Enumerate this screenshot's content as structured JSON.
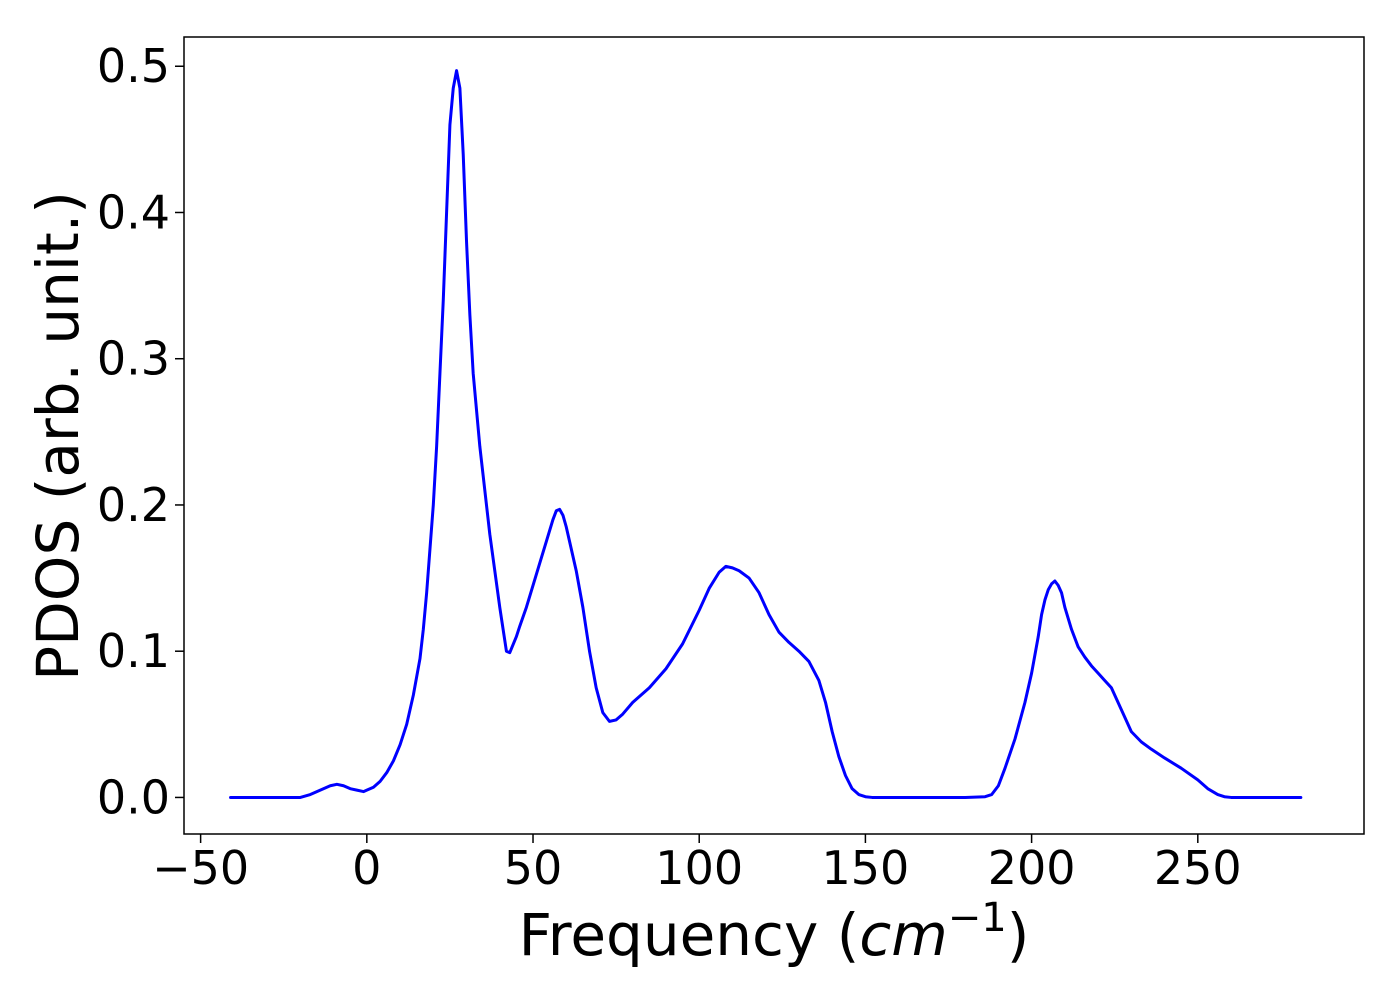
{
  "chart_data": {
    "type": "line",
    "title": "",
    "xlabel": "Frequency",
    "xlabel_unit_base": "cm",
    "xlabel_unit_exp": "−1",
    "ylabel": "PDOS (arb. unit.)",
    "xlim": [
      -55,
      300
    ],
    "ylim": [
      -0.025,
      0.52
    ],
    "xticks": [
      -50,
      0,
      50,
      100,
      150,
      200,
      250
    ],
    "xtick_labels": [
      "−50",
      "0",
      "50",
      "100",
      "150",
      "200",
      "250"
    ],
    "yticks": [
      0.0,
      0.1,
      0.2,
      0.3,
      0.4,
      0.5
    ],
    "ytick_labels": [
      "0.0",
      "0.1",
      "0.2",
      "0.3",
      "0.4",
      "0.5"
    ],
    "grid": false,
    "legend": "none",
    "line_color": "#0000ff",
    "series": [
      {
        "x": [
          -41,
          -30,
          -20,
          -17,
          -14,
          -11,
          -9,
          -7,
          -5,
          -3,
          -1,
          0,
          2,
          4,
          6,
          8,
          10,
          12,
          14,
          16,
          17,
          18,
          19,
          20,
          21,
          22,
          23,
          24,
          25,
          26,
          27,
          28,
          29,
          30,
          31,
          32,
          34,
          37,
          40,
          42,
          43,
          45,
          46,
          48,
          50,
          52,
          54,
          56,
          57,
          58,
          59,
          60,
          61,
          63,
          65,
          67,
          69,
          71,
          73,
          75,
          77,
          80,
          85,
          90,
          95,
          100,
          103,
          106,
          108,
          110,
          112,
          115,
          118,
          121,
          124,
          127,
          130,
          133,
          136,
          138,
          140,
          142,
          144,
          146,
          148,
          150,
          152,
          155,
          160,
          170,
          180,
          186,
          188,
          190,
          192,
          195,
          198,
          200,
          202,
          203,
          204,
          205,
          206,
          207,
          208,
          209,
          210,
          212,
          214,
          216,
          218,
          220,
          222,
          224,
          226,
          228,
          230,
          233,
          236,
          240,
          245,
          250,
          253,
          256,
          258,
          260,
          265,
          270,
          281
        ],
        "y": [
          0.0,
          0.0,
          0.0,
          0.002,
          0.005,
          0.008,
          0.009,
          0.008,
          0.006,
          0.005,
          0.004,
          0.005,
          0.007,
          0.011,
          0.017,
          0.025,
          0.036,
          0.05,
          0.07,
          0.095,
          0.115,
          0.14,
          0.17,
          0.2,
          0.24,
          0.29,
          0.34,
          0.4,
          0.46,
          0.485,
          0.497,
          0.485,
          0.44,
          0.38,
          0.33,
          0.29,
          0.24,
          0.18,
          0.13,
          0.1,
          0.099,
          0.11,
          0.117,
          0.13,
          0.145,
          0.16,
          0.175,
          0.19,
          0.196,
          0.197,
          0.193,
          0.185,
          0.175,
          0.155,
          0.13,
          0.1,
          0.075,
          0.058,
          0.052,
          0.053,
          0.057,
          0.065,
          0.075,
          0.088,
          0.105,
          0.128,
          0.143,
          0.154,
          0.158,
          0.157,
          0.155,
          0.15,
          0.14,
          0.125,
          0.113,
          0.106,
          0.1,
          0.093,
          0.08,
          0.065,
          0.045,
          0.028,
          0.015,
          0.006,
          0.002,
          0.0005,
          0.0,
          0.0,
          0.0,
          0.0,
          0.0,
          0.0005,
          0.002,
          0.008,
          0.02,
          0.04,
          0.065,
          0.085,
          0.11,
          0.125,
          0.135,
          0.142,
          0.146,
          0.148,
          0.145,
          0.14,
          0.13,
          0.115,
          0.103,
          0.096,
          0.09,
          0.085,
          0.08,
          0.075,
          0.065,
          0.055,
          0.045,
          0.038,
          0.033,
          0.027,
          0.02,
          0.012,
          0.006,
          0.002,
          0.0005,
          0.0,
          0.0,
          0.0,
          0.0
        ]
      }
    ]
  }
}
